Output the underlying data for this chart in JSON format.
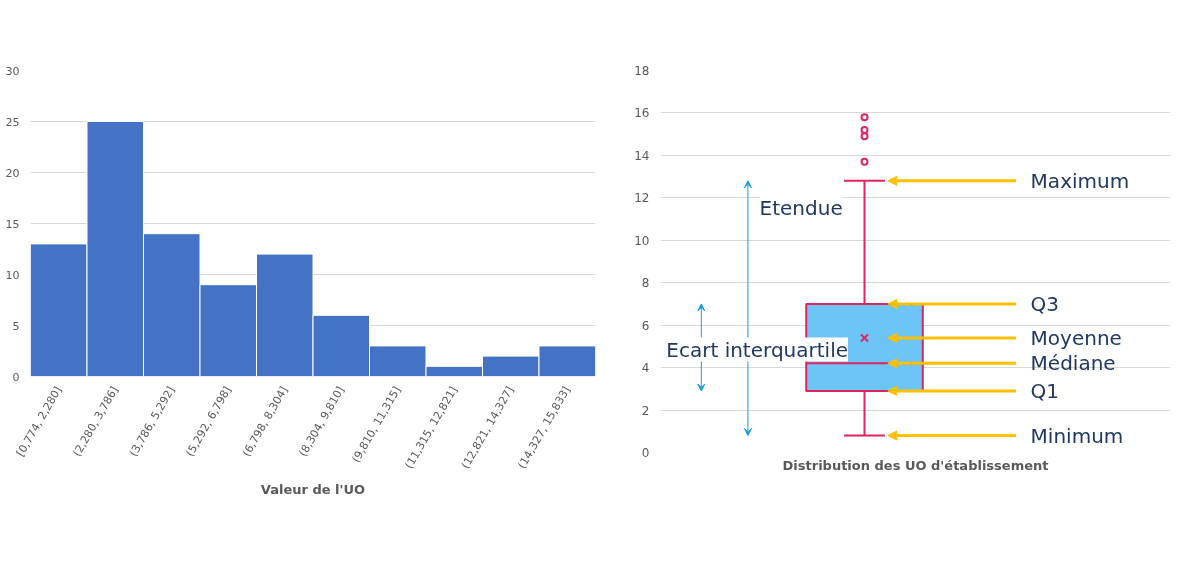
{
  "chart_data": [
    {
      "type": "bar",
      "xlabel": "Valeur de l'UO",
      "categories": [
        "[0,774, 2,280]",
        "(2,280, 3,786]",
        "(3,786, 5,292]",
        "(5,292, 6,798]",
        "(6,798, 8,304]",
        "(8,304, 9,810]",
        "(9,810, 11,315]",
        "(11,315, 12,821]",
        "(12,821, 14,327]",
        "(14,327, 15,833]"
      ],
      "values": [
        13,
        25,
        14,
        9,
        12,
        6,
        3,
        1,
        2,
        3
      ],
      "color": "#4472c4",
      "ylim": [
        0,
        30
      ],
      "yticks": [
        0,
        5,
        10,
        15,
        20,
        25,
        30
      ],
      "grid": "y"
    },
    {
      "type": "box",
      "xlabel": "Distribution des UO d'établissement",
      "categories": [
        null
      ],
      "series": [
        {
          "color": "#6cc4f7",
          "boxes": [
            {
              "low": 0.8,
              "q1": 2.9,
              "median": 4.2,
              "q3": 7.0,
              "high": 12.8,
              "mean": 5.4,
              "outliers": [
                13.7,
                14.9,
                15.2,
                15.8
              ]
            }
          ]
        }
      ],
      "ylim": [
        0,
        18
      ],
      "yticks": [
        0,
        2,
        4,
        6,
        8,
        10,
        12,
        14,
        16,
        18
      ],
      "grid": "y",
      "tick_labels": "y",
      "annotations": [
        "Maximum",
        "Q3",
        "Moyenne",
        "Médiane",
        "Q1",
        "Minimum",
        "Etendue",
        "Ecart interquartile"
      ]
    }
  ]
}
